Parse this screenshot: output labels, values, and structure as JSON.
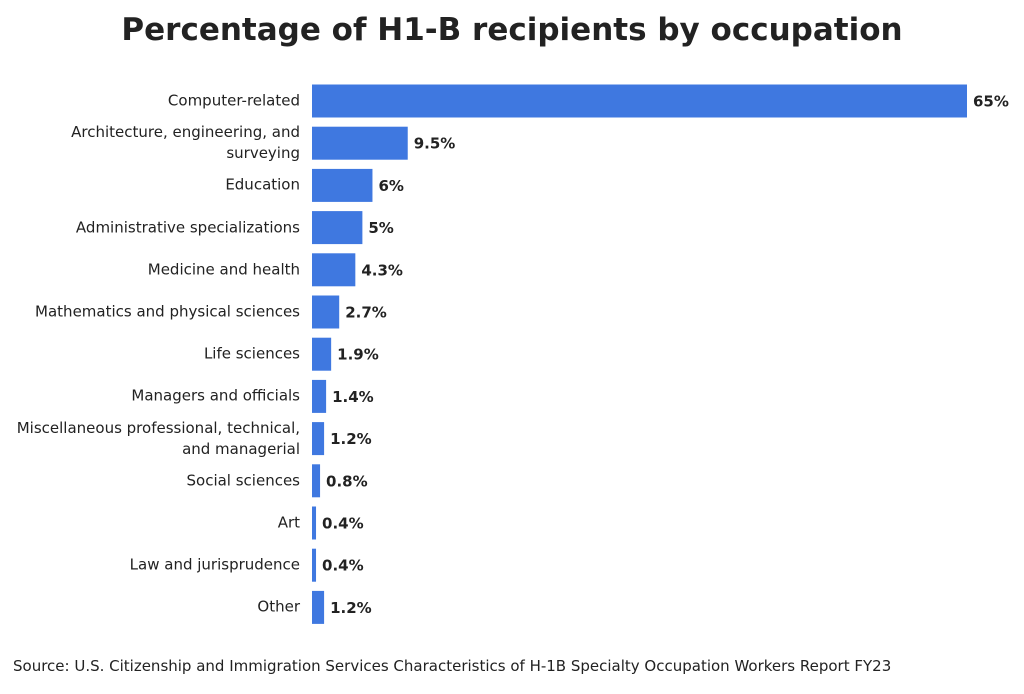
{
  "chart_data": {
    "type": "bar",
    "orientation": "horizontal",
    "title": "Percentage of H1-B recipients by occupation",
    "categories": [
      "Computer-related",
      "Architecture, engineering, and surveying",
      "Education",
      "Administrative specializations",
      "Medicine and health",
      "Mathematics and physical sciences",
      "Life sciences",
      "Managers and officials",
      "Miscellaneous professional, technical, and managerial",
      "Social sciences",
      "Art",
      "Law and jurisprudence",
      "Other"
    ],
    "values": [
      65,
      9.5,
      6,
      5,
      4.3,
      2.7,
      1.9,
      1.4,
      1.2,
      0.8,
      0.4,
      0.4,
      1.2
    ],
    "value_labels": [
      "65%",
      "9.5%",
      "6%",
      "5%",
      "4.3%",
      "2.7%",
      "1.9%",
      "1.4%",
      "1.2%",
      "0.8%",
      "0.4%",
      "0.4%",
      "1.2%"
    ],
    "color": "#3f78e0",
    "source": "Source: U.S. Citizenship and Immigration Services Characteristics of H-1B Specialty Occupation Workers Report FY23"
  }
}
